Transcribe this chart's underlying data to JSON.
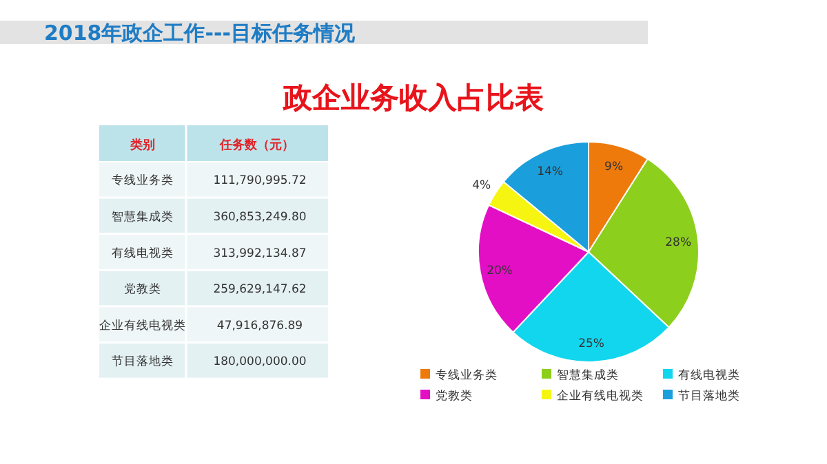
{
  "chart_data": [
    {
      "type": "other",
      "title": "2018年政企工作---目标任务情况",
      "annotations": [
        "类别",
        "任务数（元）"
      ],
      "categories": [
        "专线业务类",
        "智慧集成类",
        "有线电视类",
        "党教类",
        "企业有线电视类",
        "节目落地类"
      ],
      "values": [
        111790995.72,
        360853249.8,
        313992134.87,
        259629147.62,
        47916876.89,
        180000000.0
      ],
      "value_labels": [
        "111,790,995.72",
        "360,853,249.80",
        "313,992,134.87",
        "259,629,147.62",
        "47,916,876.89",
        "180,000,000.00"
      ]
    },
    {
      "type": "pie",
      "title": "政企业务收入占比表",
      "categories": [
        "专线业务类",
        "智慧集成类",
        "有线电视类",
        "党教类",
        "企业有线电视类",
        "节目落地类"
      ],
      "values": [
        9,
        28,
        25,
        20,
        4,
        14
      ],
      "colors": [
        "#ee7a0c",
        "#8ccf1c",
        "#12d6ee",
        "#e30fc4",
        "#f6f511",
        "#1a9fdc"
      ],
      "value_labels": [
        "9%",
        "28%",
        "25%",
        "20%",
        "4%",
        "14%"
      ],
      "legend": "bottom"
    }
  ]
}
